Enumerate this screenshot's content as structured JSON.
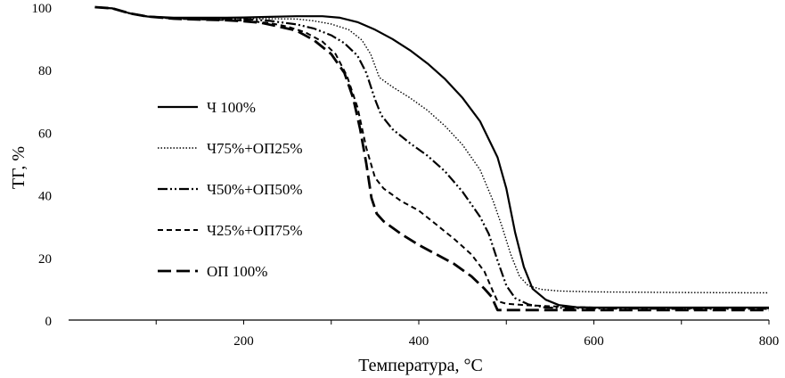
{
  "chart_data": {
    "type": "line",
    "title": "",
    "xlabel": "Температура, °C",
    "ylabel": "ТГ, %",
    "xlim": [
      0,
      800
    ],
    "ylim": [
      0,
      100
    ],
    "x_ticks": [
      200,
      400,
      600,
      800
    ],
    "x_tick_labels": [
      "200",
      "400",
      "600",
      "800"
    ],
    "y_ticks": [
      0,
      20,
      40,
      60,
      80,
      100
    ],
    "y_tick_labels": [
      "0",
      "20",
      "40",
      "60",
      "80",
      "100"
    ],
    "grid": false,
    "legend_position": "left",
    "series": [
      {
        "name": "Ч 100%",
        "dash": "solid",
        "points": [
          [
            30,
            100
          ],
          [
            50,
            99.6
          ],
          [
            70,
            98
          ],
          [
            90,
            97
          ],
          [
            120,
            96.6
          ],
          [
            150,
            96.6
          ],
          [
            180,
            96.6
          ],
          [
            200,
            96.7
          ],
          [
            230,
            96.9
          ],
          [
            260,
            97.1
          ],
          [
            290,
            97.1
          ],
          [
            310,
            96.6
          ],
          [
            330,
            95.2
          ],
          [
            350,
            92.8
          ],
          [
            370,
            89.8
          ],
          [
            390,
            86.2
          ],
          [
            410,
            82
          ],
          [
            430,
            77
          ],
          [
            450,
            71
          ],
          [
            470,
            63.5
          ],
          [
            490,
            52
          ],
          [
            500,
            42
          ],
          [
            510,
            28
          ],
          [
            520,
            17
          ],
          [
            530,
            10
          ],
          [
            545,
            6.5
          ],
          [
            560,
            4.8
          ],
          [
            580,
            4.1
          ],
          [
            600,
            4
          ],
          [
            700,
            4
          ],
          [
            800,
            4
          ]
        ]
      },
      {
        "name": "Ч75%+ОП25%",
        "dash": "dotted",
        "points": [
          [
            30,
            100
          ],
          [
            50,
            99.6
          ],
          [
            70,
            98
          ],
          [
            90,
            97
          ],
          [
            120,
            96.5
          ],
          [
            150,
            96.4
          ],
          [
            180,
            96.3
          ],
          [
            200,
            96.3
          ],
          [
            230,
            96.3
          ],
          [
            260,
            96.2
          ],
          [
            280,
            95.6
          ],
          [
            300,
            94.6
          ],
          [
            320,
            92.8
          ],
          [
            335,
            89.5
          ],
          [
            345,
            85
          ],
          [
            355,
            77.5
          ],
          [
            370,
            74.5
          ],
          [
            390,
            71
          ],
          [
            410,
            67
          ],
          [
            430,
            62
          ],
          [
            450,
            56
          ],
          [
            470,
            48
          ],
          [
            485,
            38
          ],
          [
            495,
            30
          ],
          [
            505,
            21
          ],
          [
            515,
            14
          ],
          [
            525,
            11
          ],
          [
            540,
            9.8
          ],
          [
            560,
            9.3
          ],
          [
            600,
            9
          ],
          [
            700,
            8.8
          ],
          [
            800,
            8.7
          ]
        ]
      },
      {
        "name": "Ч50%+ОП50%",
        "dash": "dash-dot-dot",
        "points": [
          [
            30,
            100
          ],
          [
            50,
            99.6
          ],
          [
            70,
            98
          ],
          [
            90,
            97
          ],
          [
            120,
            96.5
          ],
          [
            150,
            96.4
          ],
          [
            180,
            96.3
          ],
          [
            200,
            96.2
          ],
          [
            230,
            95.6
          ],
          [
            260,
            94.5
          ],
          [
            280,
            93.2
          ],
          [
            300,
            91
          ],
          [
            315,
            88.5
          ],
          [
            330,
            84.5
          ],
          [
            340,
            79
          ],
          [
            350,
            70.5
          ],
          [
            357,
            65.5
          ],
          [
            370,
            61
          ],
          [
            390,
            56.5
          ],
          [
            410,
            52.5
          ],
          [
            430,
            47.5
          ],
          [
            450,
            41
          ],
          [
            470,
            33
          ],
          [
            480,
            27.5
          ],
          [
            490,
            19
          ],
          [
            500,
            11
          ],
          [
            510,
            7
          ],
          [
            525,
            5
          ],
          [
            545,
            4
          ],
          [
            600,
            3.7
          ],
          [
            700,
            3.6
          ],
          [
            800,
            3.6
          ]
        ]
      },
      {
        "name": "Ч25%+ОП75%",
        "dash": "short-dash",
        "points": [
          [
            30,
            100
          ],
          [
            50,
            99.6
          ],
          [
            70,
            98
          ],
          [
            90,
            97
          ],
          [
            120,
            96.3
          ],
          [
            150,
            96.1
          ],
          [
            180,
            95.9
          ],
          [
            200,
            95.7
          ],
          [
            230,
            94.9
          ],
          [
            250,
            93.8
          ],
          [
            270,
            92
          ],
          [
            290,
            89
          ],
          [
            305,
            85
          ],
          [
            318,
            78
          ],
          [
            330,
            68
          ],
          [
            340,
            55
          ],
          [
            350,
            45.5
          ],
          [
            360,
            42
          ],
          [
            380,
            38
          ],
          [
            400,
            35
          ],
          [
            420,
            30.5
          ],
          [
            440,
            26
          ],
          [
            460,
            21
          ],
          [
            475,
            15.5
          ],
          [
            485,
            9
          ],
          [
            490,
            6
          ],
          [
            500,
            5.2
          ],
          [
            520,
            4.8
          ],
          [
            560,
            4.3
          ],
          [
            600,
            4
          ],
          [
            700,
            3.8
          ],
          [
            800,
            3.8
          ]
        ]
      },
      {
        "name": "ОП 100%",
        "dash": "long-dash",
        "points": [
          [
            30,
            100
          ],
          [
            50,
            99.6
          ],
          [
            70,
            98
          ],
          [
            90,
            97
          ],
          [
            120,
            96.3
          ],
          [
            150,
            96
          ],
          [
            180,
            95.8
          ],
          [
            200,
            95.5
          ],
          [
            220,
            95
          ],
          [
            240,
            93.8
          ],
          [
            260,
            92.5
          ],
          [
            280,
            89.5
          ],
          [
            300,
            85
          ],
          [
            315,
            79
          ],
          [
            325,
            71
          ],
          [
            333,
            61
          ],
          [
            340,
            50
          ],
          [
            346,
            39
          ],
          [
            352,
            34
          ],
          [
            360,
            31.5
          ],
          [
            380,
            27.5
          ],
          [
            400,
            24
          ],
          [
            420,
            21
          ],
          [
            440,
            18
          ],
          [
            460,
            14
          ],
          [
            475,
            10
          ],
          [
            483,
            7.5
          ],
          [
            487,
            5
          ],
          [
            490,
            3.2
          ],
          [
            500,
            3.2
          ],
          [
            600,
            3.2
          ],
          [
            700,
            3.2
          ],
          [
            800,
            3.2
          ]
        ]
      }
    ]
  }
}
